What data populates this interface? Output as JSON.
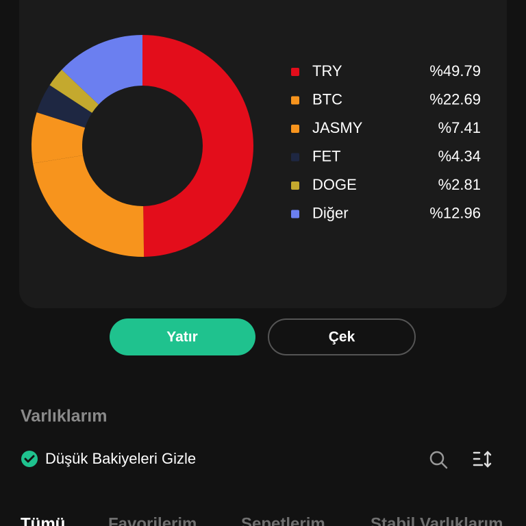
{
  "chart_data": {
    "type": "donut",
    "categories": [
      "TRY",
      "BTC",
      "JASMY",
      "FET",
      "DOGE",
      "Diğer"
    ],
    "values": [
      49.79,
      22.69,
      7.41,
      4.34,
      2.81,
      12.96
    ],
    "value_labels": [
      "%49.79",
      "%22.69",
      "%7.41",
      "%4.34",
      "%2.81",
      "%12.96"
    ],
    "colors": [
      "#e30d1b",
      "#f7941d",
      "#f7941d",
      "#1e2742",
      "#c4a92e",
      "#6b7ff0"
    ]
  },
  "buttons": [
    "Yatır",
    "Çek"
  ],
  "section_title": "Varlıklarım",
  "toggle_label": "Düşük Bakiyeleri Gizle",
  "tabs": [
    "Tümü",
    "Favorilerim",
    "Sepetlerim",
    "Stabil Varlıklarım"
  ]
}
